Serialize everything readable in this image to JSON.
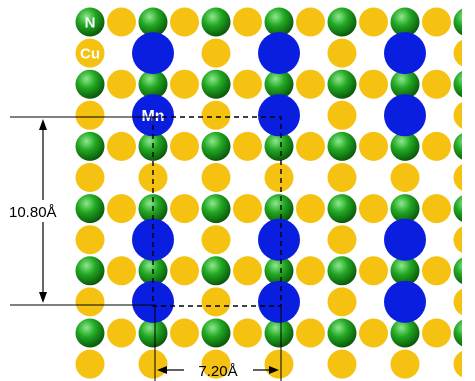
{
  "labels": {
    "nitrogen": "N",
    "copper": "Cu",
    "manganese": "Mn"
  },
  "dimensions": {
    "vertical": "10.80Å",
    "horizontal": "7.20Å"
  },
  "colors": {
    "nitrogen_light": "#7de07d",
    "nitrogen_mid": "#1fa51f",
    "nitrogen_dark": "#0b5c0b",
    "copper": "#f5c211",
    "manganese": "#0a1ee0",
    "lines": "#000000"
  }
}
